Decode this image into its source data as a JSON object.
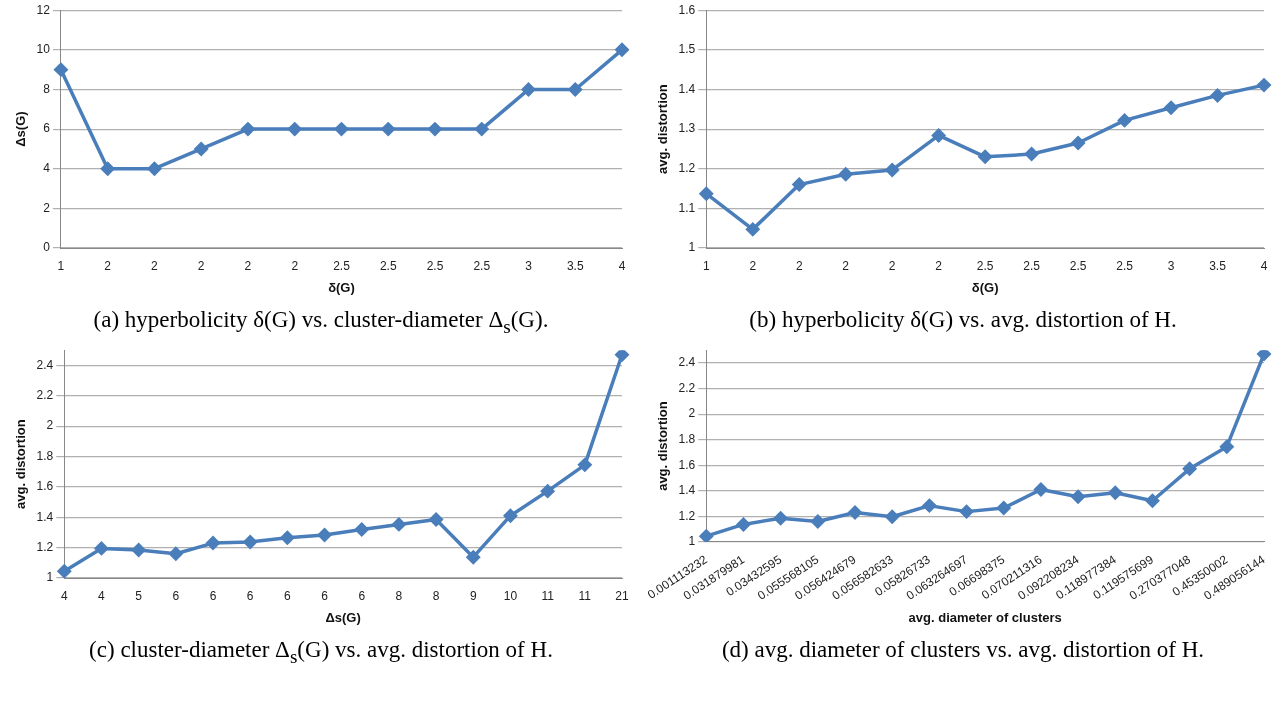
{
  "chart_data": [
    {
      "type": "line",
      "title": "(a) hyperbolicity δ(G) vs. cluster-diameter Δ$_{s}$(G).",
      "xlabel": "δ(G)",
      "ylabel": "Δs(G)",
      "categories": [
        "1",
        "2",
        "2",
        "2",
        "2",
        "2",
        "2.5",
        "2.5",
        "2.5",
        "2.5",
        "3",
        "3.5",
        "4"
      ],
      "series": [
        {
          "color": "#4a7ebb",
          "values": [
            9,
            4,
            4,
            5,
            6,
            6,
            6,
            6,
            6,
            6,
            8,
            8,
            10
          ]
        }
      ],
      "ylim": [
        0,
        12
      ],
      "yticks": [
        0,
        2,
        4,
        6,
        8,
        10,
        12
      ],
      "grid": "y",
      "legend": false,
      "marker": "diamond",
      "line_style": "solid"
    },
    {
      "type": "line",
      "title": "(b) hyperbolicity δ(G) vs. avg. distortion of H.",
      "xlabel": "δ(G)",
      "ylabel": "avg. distortion",
      "categories": [
        "1",
        "2",
        "2",
        "2",
        "2",
        "2",
        "2.5",
        "2.5",
        "2.5",
        "2.5",
        "3",
        "3.5",
        "4"
      ],
      "series": [
        {
          "color": "#4a7ebb",
          "values": [
            1.137,
            1.047,
            1.16,
            1.186,
            1.197,
            1.284,
            1.23,
            1.237,
            1.265,
            1.322,
            1.354,
            1.385,
            1.411
          ]
        }
      ],
      "ylim": [
        1,
        1.6
      ],
      "yticks": [
        1,
        1.1,
        1.2,
        1.3,
        1.4,
        1.5,
        1.6
      ],
      "grid": "y",
      "legend": false,
      "marker": "diamond",
      "line_style": "solid"
    },
    {
      "type": "line",
      "title": "(c) cluster-diameter Δ$_{s}$(G) vs. avg. distortion of H.",
      "xlabel": "Δs(G)",
      "ylabel": "avg. distortion",
      "categories": [
        "4",
        "4",
        "5",
        "6",
        "6",
        "6",
        "6",
        "6",
        "6",
        "8",
        "8",
        "9",
        "10",
        "11",
        "11",
        "21"
      ],
      "series": [
        {
          "color": "#4a7ebb",
          "values": [
            1.045,
            1.195,
            1.185,
            1.16,
            1.23,
            1.237,
            1.265,
            1.283,
            1.32,
            1.353,
            1.385,
            1.137,
            1.41,
            1.572,
            1.745,
            2.47
          ]
        }
      ],
      "ylim": [
        1,
        2.5
      ],
      "yticks": [
        1,
        1.2,
        1.4,
        1.6,
        1.8,
        2,
        2.2,
        2.4
      ],
      "grid": "y",
      "legend": false,
      "marker": "diamond",
      "line_style": "solid"
    },
    {
      "type": "line",
      "title": "(d) avg. diameter of clusters vs. avg. distortion of H.",
      "xlabel": "avg. diameter of clusters",
      "ylabel": "avg. distortion",
      "categories": [
        "0.001113232",
        "0.031879981",
        "0.03432595",
        "0.055568105",
        "0.056424679",
        "0.056582633",
        "0.05826733",
        "0.063264697",
        "0.06698375",
        "0.070211316",
        "0.092208234",
        "0.118977384",
        "0.119575699",
        "0.270377048",
        "0.45350002",
        "0.489056144"
      ],
      "series": [
        {
          "color": "#4a7ebb",
          "values": [
            1.045,
            1.137,
            1.185,
            1.16,
            1.23,
            1.197,
            1.284,
            1.237,
            1.265,
            1.41,
            1.354,
            1.385,
            1.322,
            1.572,
            1.745,
            2.47
          ]
        }
      ],
      "ylim": [
        1,
        2.5
      ],
      "yticks": [
        1,
        1.2,
        1.4,
        1.6,
        1.8,
        2,
        2.2,
        2.4
      ],
      "grid": "y",
      "legend": false,
      "marker": "diamond",
      "line_style": "solid"
    }
  ]
}
